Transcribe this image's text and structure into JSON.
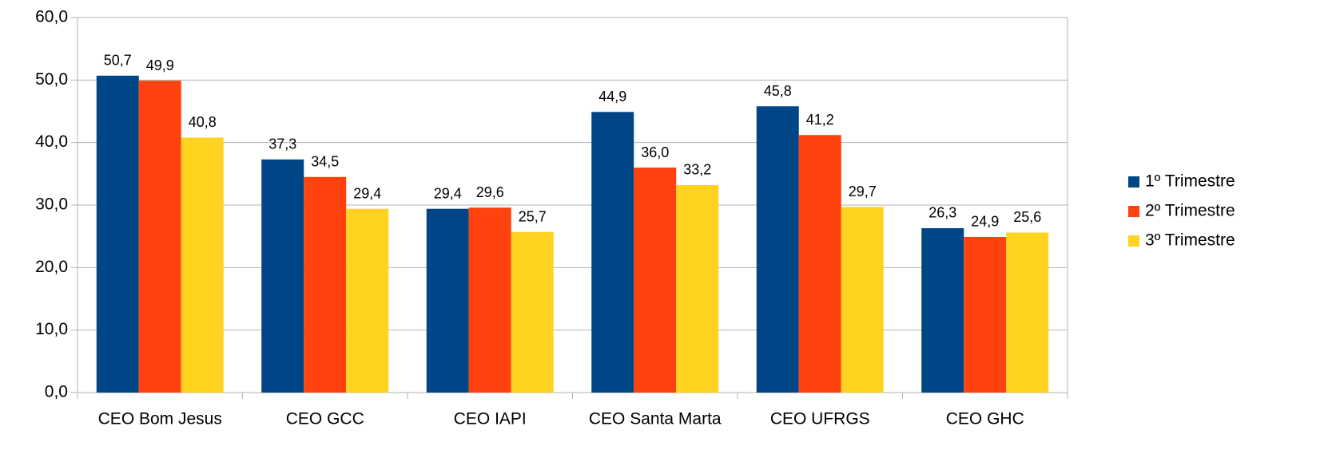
{
  "chart_data": {
    "type": "bar",
    "categories": [
      "CEO Bom Jesus",
      "CEO GCC",
      "CEO IAPI",
      "CEO Santa Marta",
      "CEO UFRGS",
      "CEO GHC"
    ],
    "series": [
      {
        "name": "1º Trimestre",
        "color": "#004586",
        "values": [
          50.7,
          37.3,
          29.4,
          44.9,
          45.8,
          26.3
        ],
        "value_labels": [
          "50,7",
          "37,3",
          "29,4",
          "44,9",
          "45,8",
          "26,3"
        ]
      },
      {
        "name": "2º Trimestre",
        "color": "#ff420e",
        "values": [
          49.9,
          34.5,
          29.6,
          36.0,
          41.2,
          24.9
        ],
        "value_labels": [
          "49,9",
          "34,5",
          "29,6",
          "36,0",
          "41,2",
          "24,9"
        ]
      },
      {
        "name": "3º Trimestre",
        "color": "#ffd320",
        "values": [
          40.8,
          29.4,
          25.7,
          33.2,
          29.7,
          25.6
        ],
        "value_labels": [
          "40,8",
          "29,4",
          "25,7",
          "33,2",
          "29,7",
          "25,6"
        ]
      }
    ],
    "ylim": [
      0,
      60
    ],
    "yticks": [
      {
        "value": 0,
        "label": "0,0"
      },
      {
        "value": 10,
        "label": "10,0"
      },
      {
        "value": 20,
        "label": "20,0"
      },
      {
        "value": 30,
        "label": "30,0"
      },
      {
        "value": 40,
        "label": "40,0"
      },
      {
        "value": 50,
        "label": "50,0"
      },
      {
        "value": 60,
        "label": "60,0"
      }
    ],
    "grid": true,
    "legend": "right"
  }
}
